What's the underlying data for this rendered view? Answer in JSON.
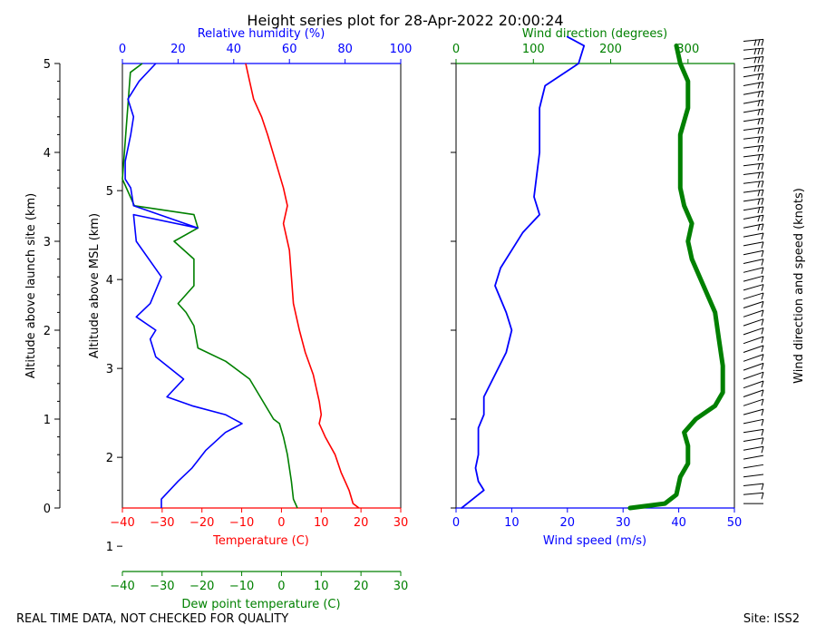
{
  "title": "Height series plot for 28-Apr-2022 20:00:24",
  "footer_left": "REAL TIME DATA, NOT CHECKED FOR QUALITY",
  "footer_right": "Site: ISS2",
  "colors": {
    "red": "#ff0000",
    "blue": "#0000ff",
    "green": "#008000",
    "black": "#000000"
  },
  "chart_data": [
    {
      "type": "line",
      "panel": "thermodynamic",
      "axes": {
        "alt_launch": {
          "label": "Altitude above launch site (km)",
          "range": [
            0,
            5
          ],
          "ticks": [
            "0",
            "1",
            "2",
            "3",
            "4",
            "5"
          ]
        },
        "alt_msl": {
          "label": "Altitude above MSL (km)",
          "range": [
            1.43,
            6.43
          ],
          "ticks": [
            "1",
            "2",
            "3",
            "4",
            "5"
          ]
        },
        "temperature": {
          "label": "Temperature (C)",
          "range": [
            -40,
            30
          ],
          "ticks": [
            "−40",
            "−30",
            "−20",
            "−10",
            "0",
            "10",
            "20",
            "30"
          ]
        },
        "dewpoint": {
          "label": "Dew point temperature (C)",
          "range": [
            -40,
            30
          ],
          "ticks": [
            "−40",
            "−30",
            "−20",
            "−10",
            "0",
            "10",
            "20",
            "30"
          ]
        },
        "rh": {
          "label": "Relative humidity (%)",
          "range": [
            0,
            100
          ],
          "ticks": [
            "0",
            "20",
            "40",
            "60",
            "80",
            "100"
          ]
        }
      },
      "series": [
        {
          "key": "temperature",
          "color": "#ff0000",
          "points": [
            [
              19.5,
              0
            ],
            [
              18,
              0.05
            ],
            [
              17,
              0.2
            ],
            [
              15,
              0.4
            ],
            [
              13.5,
              0.6
            ],
            [
              11,
              0.8
            ],
            [
              9.5,
              0.95
            ],
            [
              10,
              1.05
            ],
            [
              9.5,
              1.2
            ],
            [
              8,
              1.5
            ],
            [
              6,
              1.75
            ],
            [
              4.5,
              2.0
            ],
            [
              3,
              2.3
            ],
            [
              2.5,
              2.6
            ],
            [
              2,
              2.9
            ],
            [
              1,
              3.1
            ],
            [
              0.5,
              3.2
            ],
            [
              1.5,
              3.4
            ],
            [
              0.5,
              3.6
            ],
            [
              -1.5,
              3.9
            ],
            [
              -3.5,
              4.2
            ],
            [
              -5,
              4.4
            ],
            [
              -7,
              4.6
            ],
            [
              -8,
              4.8
            ],
            [
              -9,
              5.0
            ]
          ]
        },
        {
          "key": "dewpoint",
          "color": "#008000",
          "points": [
            [
              4,
              0
            ],
            [
              3,
              0.1
            ],
            [
              2.5,
              0.3
            ],
            [
              1.5,
              0.6
            ],
            [
              0.5,
              0.8
            ],
            [
              -0.5,
              0.95
            ],
            [
              -2,
              1.0
            ],
            [
              -8,
              1.45
            ],
            [
              -14,
              1.65
            ],
            [
              -21,
              1.8
            ],
            [
              -22,
              2.05
            ],
            [
              -24,
              2.2
            ],
            [
              -26,
              2.3
            ],
            [
              -22,
              2.5
            ],
            [
              -22,
              2.8
            ],
            [
              -27,
              3.0
            ],
            [
              -21,
              3.15
            ],
            [
              -22,
              3.3
            ],
            [
              -37,
              3.4
            ],
            [
              -38,
              3.5
            ],
            [
              -40,
              3.7
            ],
            [
              -38,
              4.9
            ],
            [
              -35,
              5.0
            ]
          ]
        },
        {
          "key": "rh",
          "color": "#0000ff",
          "points": [
            [
              14,
              0
            ],
            [
              14,
              0.1
            ],
            [
              20,
              0.3
            ],
            [
              25,
              0.45
            ],
            [
              30,
              0.65
            ],
            [
              37,
              0.85
            ],
            [
              43,
              0.95
            ],
            [
              37,
              1.05
            ],
            [
              25,
              1.15
            ],
            [
              16,
              1.25
            ],
            [
              22,
              1.45
            ],
            [
              12,
              1.7
            ],
            [
              10,
              1.9
            ],
            [
              12,
              2.0
            ],
            [
              5,
              2.15
            ],
            [
              10,
              2.3
            ],
            [
              14,
              2.6
            ],
            [
              5,
              3.0
            ],
            [
              4,
              3.3
            ],
            [
              27,
              3.15
            ],
            [
              4,
              3.4
            ],
            [
              3,
              3.6
            ],
            [
              1,
              3.7
            ],
            [
              1,
              3.9
            ],
            [
              3,
              4.2
            ],
            [
              4,
              4.4
            ],
            [
              2,
              4.6
            ],
            [
              6,
              4.8
            ],
            [
              12,
              5.0
            ]
          ]
        }
      ]
    },
    {
      "type": "line",
      "panel": "wind",
      "axes": {
        "speed": {
          "label": "Wind speed (m/s)",
          "range": [
            0,
            50
          ],
          "ticks": [
            "0",
            "10",
            "20",
            "30",
            "40",
            "50"
          ]
        },
        "direction": {
          "label": "Wind direction (degrees)",
          "range": [
            0,
            360
          ],
          "ticks": [
            "0",
            "100",
            "200",
            "300"
          ]
        },
        "barbs": {
          "label": "Wind direction and speed (knots)"
        }
      },
      "series": [
        {
          "key": "wind_speed",
          "color": "#0000ff",
          "points": [
            [
              1,
              0
            ],
            [
              2,
              0.05
            ],
            [
              5,
              0.2
            ],
            [
              4,
              0.3
            ],
            [
              3.5,
              0.45
            ],
            [
              4,
              0.6
            ],
            [
              4,
              0.9
            ],
            [
              5,
              1.05
            ],
            [
              5,
              1.25
            ],
            [
              7,
              1.5
            ],
            [
              9,
              1.75
            ],
            [
              10,
              2.0
            ],
            [
              9,
              2.2
            ],
            [
              7,
              2.5
            ],
            [
              8,
              2.7
            ],
            [
              10,
              2.9
            ],
            [
              12,
              3.1
            ],
            [
              15,
              3.3
            ],
            [
              14,
              3.5
            ],
            [
              15,
              4.0
            ],
            [
              15,
              4.5
            ],
            [
              16,
              4.75
            ],
            [
              22,
              5.0
            ],
            [
              23,
              5.2
            ],
            [
              20,
              5.3
            ]
          ]
        },
        {
          "key": "wind_direction",
          "color": "#008000",
          "points": [
            [
              225,
              0
            ],
            [
              270,
              0.05
            ],
            [
              285,
              0.15
            ],
            [
              290,
              0.35
            ],
            [
              300,
              0.5
            ],
            [
              300,
              0.7
            ],
            [
              295,
              0.85
            ],
            [
              310,
              1.0
            ],
            [
              335,
              1.15
            ],
            [
              345,
              1.3
            ],
            [
              345,
              1.6
            ],
            [
              340,
              1.9
            ],
            [
              335,
              2.2
            ],
            [
              320,
              2.5
            ],
            [
              305,
              2.8
            ],
            [
              300,
              3.0
            ],
            [
              305,
              3.2
            ],
            [
              295,
              3.4
            ],
            [
              290,
              3.6
            ],
            [
              290,
              4.0
            ],
            [
              290,
              4.2
            ],
            [
              300,
              4.5
            ],
            [
              300,
              4.8
            ],
            [
              290,
              5.0
            ],
            [
              285,
              5.2
            ]
          ]
        }
      ]
    }
  ]
}
